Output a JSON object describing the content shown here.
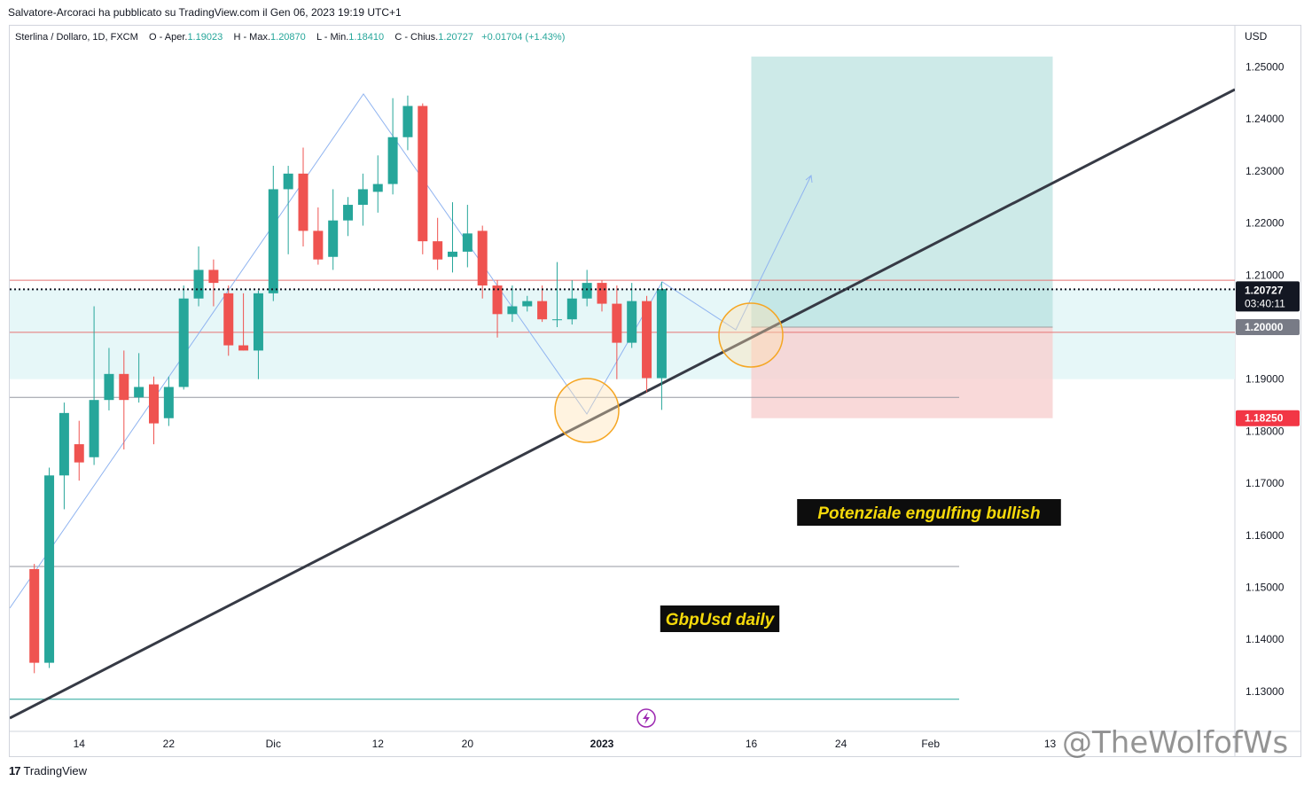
{
  "header": {
    "published": "Salvatore-Arcoraci ha pubblicato su TradingView.com il Gen 06, 2023 19:19 UTC+1"
  },
  "legend": {
    "symbol": "Sterlina / Dollaro, 1D, FXCM",
    "open_label": "O - Aper.",
    "open": "1.19023",
    "high_label": "H - Max.",
    "high": "1.20870",
    "low_label": "L - Min.",
    "low": "1.18410",
    "close_label": "C - Chius.",
    "close": "1.20727",
    "change": "+0.01704 (+1.43%)"
  },
  "axis": {
    "currency": "USD",
    "current_price": "1.20727",
    "countdown": "03:40:11",
    "target_label": "1.20000",
    "stop_label": "1.18250"
  },
  "annotations": {
    "engulfing": "Potenziale engulfing bullish",
    "daily": "GbpUsd daily"
  },
  "footer": {
    "brand": "TradingView"
  },
  "watermark": "@TheWolfofWs",
  "colors": {
    "up": "#26a69a",
    "down": "#ef5350",
    "trend": "#363a45",
    "zone": "#e6f7f8",
    "profit": "#b2dfdb",
    "loss": "#f8cfcf",
    "hline_red": "#e57373",
    "path": "#90b4f0"
  },
  "chart_data": {
    "type": "candlestick",
    "title": "Sterlina / Dollaro, 1D, FXCM",
    "ylim": [
      1.1235,
      1.2593
    ],
    "y_ticks": [
      "1.25000",
      "1.24000",
      "1.23000",
      "1.22000",
      "1.21000",
      "1.20000",
      "1.19000",
      "1.18000",
      "1.17000",
      "1.16000",
      "1.15000",
      "1.14000",
      "1.13000"
    ],
    "x_tick_labels": [
      {
        "label": "14",
        "date": "2022-11-14"
      },
      {
        "label": "22",
        "date": "2022-11-22"
      },
      {
        "label": "Dic",
        "date": "2022-12-01"
      },
      {
        "label": "12",
        "date": "2022-12-12"
      },
      {
        "label": "20",
        "date": "2022-12-20"
      },
      {
        "label": "2023",
        "date": "2023-01-02"
      },
      {
        "label": "16",
        "date": "2023-01-16"
      },
      {
        "label": "24",
        "date": "2023-01-24"
      },
      {
        "label": "Feb",
        "date": "2023-02-01"
      },
      {
        "label": "13",
        "date": "2023-02-13"
      }
    ],
    "candles": [
      {
        "date": "2022-11-09",
        "o": 1.1535,
        "h": 1.1545,
        "l": 1.1335,
        "c": 1.1355
      },
      {
        "date": "2022-11-10",
        "o": 1.1355,
        "h": 1.173,
        "l": 1.1345,
        "c": 1.1715
      },
      {
        "date": "2022-11-11",
        "o": 1.1715,
        "h": 1.1855,
        "l": 1.165,
        "c": 1.1835
      },
      {
        "date": "2022-11-14",
        "o": 1.1775,
        "h": 1.182,
        "l": 1.1705,
        "c": 1.174
      },
      {
        "date": "2022-11-15",
        "o": 1.175,
        "h": 1.204,
        "l": 1.1735,
        "c": 1.186
      },
      {
        "date": "2022-11-16",
        "o": 1.186,
        "h": 1.196,
        "l": 1.184,
        "c": 1.191
      },
      {
        "date": "2022-11-17",
        "o": 1.191,
        "h": 1.1955,
        "l": 1.1765,
        "c": 1.186
      },
      {
        "date": "2022-11-18",
        "o": 1.1865,
        "h": 1.195,
        "l": 1.1855,
        "c": 1.1885
      },
      {
        "date": "2022-11-21",
        "o": 1.189,
        "h": 1.1905,
        "l": 1.1775,
        "c": 1.1815
      },
      {
        "date": "2022-11-22",
        "o": 1.1825,
        "h": 1.1905,
        "l": 1.181,
        "c": 1.1885
      },
      {
        "date": "2022-11-23",
        "o": 1.1885,
        "h": 1.208,
        "l": 1.188,
        "c": 1.2055
      },
      {
        "date": "2022-11-24",
        "o": 1.2055,
        "h": 1.2155,
        "l": 1.204,
        "c": 1.211
      },
      {
        "date": "2022-11-25",
        "o": 1.211,
        "h": 1.213,
        "l": 1.204,
        "c": 1.2085
      },
      {
        "date": "2022-11-28",
        "o": 1.2065,
        "h": 1.208,
        "l": 1.1945,
        "c": 1.1965
      },
      {
        "date": "2022-11-29",
        "o": 1.1965,
        "h": 1.2065,
        "l": 1.1955,
        "c": 1.1955
      },
      {
        "date": "2022-11-30",
        "o": 1.1955,
        "h": 1.207,
        "l": 1.19,
        "c": 1.2065
      },
      {
        "date": "2022-12-01",
        "o": 1.2065,
        "h": 1.231,
        "l": 1.205,
        "c": 1.2265
      },
      {
        "date": "2022-12-02",
        "o": 1.2265,
        "h": 1.231,
        "l": 1.214,
        "c": 1.2295
      },
      {
        "date": "2022-12-05",
        "o": 1.2295,
        "h": 1.2345,
        "l": 1.2155,
        "c": 1.2185
      },
      {
        "date": "2022-12-06",
        "o": 1.2185,
        "h": 1.223,
        "l": 1.212,
        "c": 1.213
      },
      {
        "date": "2022-12-07",
        "o": 1.2135,
        "h": 1.2265,
        "l": 1.211,
        "c": 1.2205
      },
      {
        "date": "2022-12-08",
        "o": 1.2205,
        "h": 1.225,
        "l": 1.2175,
        "c": 1.2235
      },
      {
        "date": "2022-12-09",
        "o": 1.2235,
        "h": 1.2295,
        "l": 1.2195,
        "c": 1.2265
      },
      {
        "date": "2022-12-12",
        "o": 1.226,
        "h": 1.233,
        "l": 1.222,
        "c": 1.2275
      },
      {
        "date": "2022-12-13",
        "o": 1.2275,
        "h": 1.244,
        "l": 1.2255,
        "c": 1.2365
      },
      {
        "date": "2022-12-14",
        "o": 1.2365,
        "h": 1.2445,
        "l": 1.234,
        "c": 1.2425
      },
      {
        "date": "2022-12-15",
        "o": 1.2425,
        "h": 1.243,
        "l": 1.214,
        "c": 1.2165
      },
      {
        "date": "2022-12-16",
        "o": 1.2165,
        "h": 1.221,
        "l": 1.211,
        "c": 1.213
      },
      {
        "date": "2022-12-19",
        "o": 1.2135,
        "h": 1.224,
        "l": 1.2105,
        "c": 1.2145
      },
      {
        "date": "2022-12-20",
        "o": 1.2145,
        "h": 1.2235,
        "l": 1.2115,
        "c": 1.218
      },
      {
        "date": "2022-12-21",
        "o": 1.2185,
        "h": 1.2195,
        "l": 1.2055,
        "c": 1.208
      },
      {
        "date": "2022-12-22",
        "o": 1.208,
        "h": 1.209,
        "l": 1.198,
        "c": 1.2025
      },
      {
        "date": "2022-12-23",
        "o": 1.2025,
        "h": 1.208,
        "l": 1.201,
        "c": 1.204
      },
      {
        "date": "2022-12-26",
        "o": 1.204,
        "h": 1.206,
        "l": 1.203,
        "c": 1.205
      },
      {
        "date": "2022-12-27",
        "o": 1.205,
        "h": 1.208,
        "l": 1.201,
        "c": 1.2015
      },
      {
        "date": "2022-12-28",
        "o": 1.2015,
        "h": 1.2125,
        "l": 1.2,
        "c": 1.2015
      },
      {
        "date": "2022-12-29",
        "o": 1.2015,
        "h": 1.209,
        "l": 1.2005,
        "c": 1.2055
      },
      {
        "date": "2022-12-30",
        "o": 1.2055,
        "h": 1.211,
        "l": 1.204,
        "c": 1.2085
      },
      {
        "date": "2023-01-02",
        "o": 1.2085,
        "h": 1.209,
        "l": 1.203,
        "c": 1.2045
      },
      {
        "date": "2023-01-03",
        "o": 1.2045,
        "h": 1.208,
        "l": 1.19,
        "c": 1.197
      },
      {
        "date": "2023-01-04",
        "o": 1.197,
        "h": 1.2085,
        "l": 1.196,
        "c": 1.205
      },
      {
        "date": "2023-01-05",
        "o": 1.205,
        "h": 1.206,
        "l": 1.1875,
        "c": 1.1902
      },
      {
        "date": "2023-01-06",
        "o": 1.1902,
        "h": 1.2087,
        "l": 1.1841,
        "c": 1.2073
      }
    ],
    "horizontal_levels": [
      1.209,
      1.199,
      1.1865,
      1.154,
      1.1285
    ],
    "zone": [
      1.19,
      1.2073
    ],
    "position": {
      "entry": 1.2,
      "target": 1.252,
      "stop": 1.1825,
      "start_date": "2023-01-16",
      "end_date": "2023-02-13"
    }
  }
}
